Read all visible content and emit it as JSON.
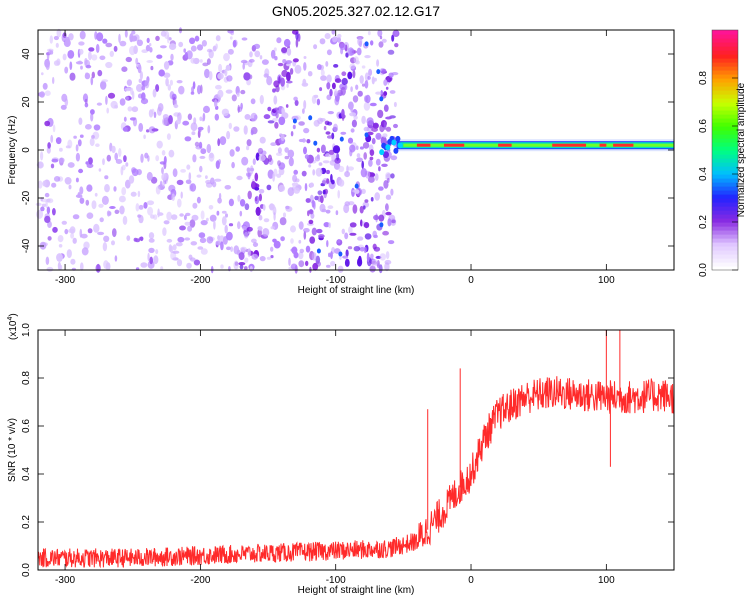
{
  "title": "GN05.2025.327.02.12.G17",
  "chart_data": [
    {
      "type": "heatmap",
      "title": "GN05.2025.327.02.12.G17",
      "xlabel": "Height of straight line (km)",
      "ylabel": "Frequency (Hz)",
      "xlim": [
        -320,
        150
      ],
      "ylim": [
        -50,
        50
      ],
      "xticks": [
        -300,
        -200,
        -100,
        0,
        100
      ],
      "yticks": [
        -40,
        -20,
        0,
        20,
        40
      ],
      "colorbar": {
        "label": "Normalized spectral amplitude",
        "range": [
          0,
          1
        ],
        "ticks": [
          0.0,
          0.2,
          0.4,
          0.6,
          0.8
        ],
        "tick_labels": [
          "0.0",
          "0.2",
          "0.4",
          "0.6",
          "0.8"
        ],
        "colors": [
          "#ffffff",
          "#e0c8ff",
          "#8a2be2",
          "#2222ff",
          "#00bfff",
          "#00ff80",
          "#40ff00",
          "#c8ff00",
          "#ffa000",
          "#ff2020",
          "#ff1493"
        ]
      },
      "features": {
        "noise_region_x": [
          -320,
          -55
        ],
        "tone_region_x": [
          -55,
          150
        ],
        "tone_frequency_hz": 2,
        "diagonal_streak_centers_x": [
          -150,
          -105,
          -70,
          -55
        ]
      }
    },
    {
      "type": "line",
      "xlabel": "Height of straight line (km)",
      "ylabel": "SNR (10 * v/v)",
      "y_multiplier": "(x10^4)",
      "y_multiplier_base": "(x10",
      "y_multiplier_exp": "4",
      "xlim": [
        -320,
        150
      ],
      "ylim": [
        0,
        1.0
      ],
      "xticks": [
        -300,
        -200,
        -100,
        0,
        100
      ],
      "yticks": [
        0.0,
        0.2,
        0.4,
        0.6,
        0.8,
        1.0
      ],
      "ytick_labels": [
        "0.0",
        "0.2",
        "0.4",
        "0.6",
        "0.8",
        "1.0"
      ],
      "series": [
        {
          "name": "SNR",
          "color": "#ff2a2a",
          "x": [
            -320,
            -300,
            -250,
            -200,
            -150,
            -100,
            -60,
            -40,
            -30,
            -20,
            -10,
            0,
            10,
            20,
            40,
            60,
            80,
            100,
            120,
            140,
            150
          ],
          "values": [
            0.05,
            0.05,
            0.05,
            0.06,
            0.07,
            0.08,
            0.09,
            0.12,
            0.18,
            0.25,
            0.33,
            0.4,
            0.55,
            0.65,
            0.72,
            0.74,
            0.73,
            0.72,
            0.72,
            0.73,
            0.72
          ]
        }
      ],
      "noise_amplitude": 0.04,
      "spikes": [
        {
          "x": -32,
          "y": 0.67
        },
        {
          "x": -8,
          "y": 0.84
        },
        {
          "x": 100,
          "y": 1.0
        },
        {
          "x": 110,
          "y": 1.0
        },
        {
          "x": 103,
          "y": 0.43
        }
      ]
    }
  ]
}
